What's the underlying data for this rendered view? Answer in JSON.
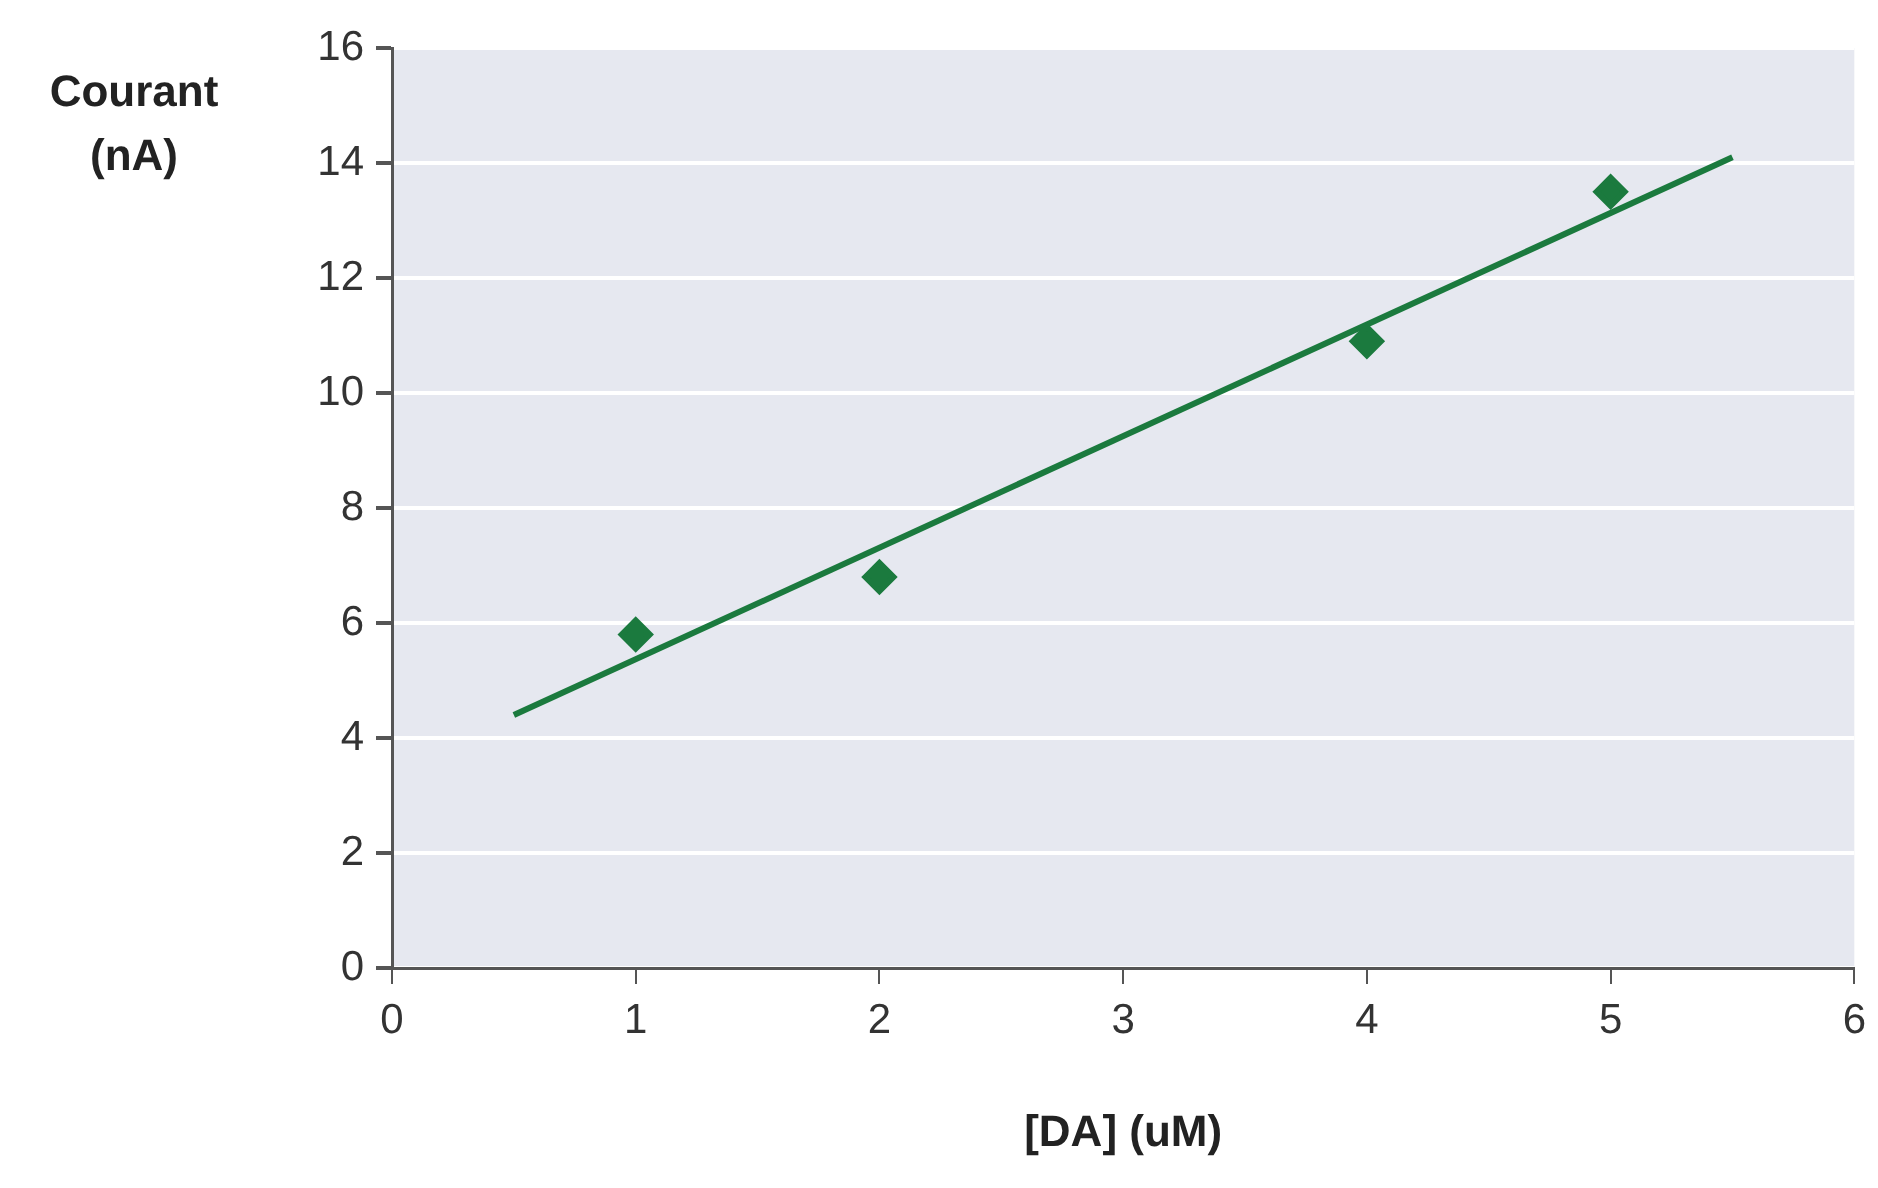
{
  "chart_data": {
    "type": "scatter",
    "xlabel": "[DA] (uM)",
    "ylabel": "Courant (nA)",
    "xlim": [
      0,
      6
    ],
    "ylim": [
      0,
      16
    ],
    "xticks": [
      0,
      1,
      2,
      3,
      4,
      5,
      6
    ],
    "yticks": [
      0,
      2,
      4,
      6,
      8,
      10,
      12,
      14,
      16
    ],
    "grid": "y",
    "series": [
      {
        "type": "scatter",
        "color": "#1b7a3e",
        "x": [
          1,
          2,
          4,
          5
        ],
        "values": [
          5.8,
          6.8,
          10.9,
          13.5
        ],
        "marker": "diamond"
      },
      {
        "type": "line",
        "color": "#1b7a3e",
        "x": [
          0.5,
          5.5
        ],
        "values": [
          4.4,
          14.1
        ],
        "marker": "none"
      }
    ]
  }
}
